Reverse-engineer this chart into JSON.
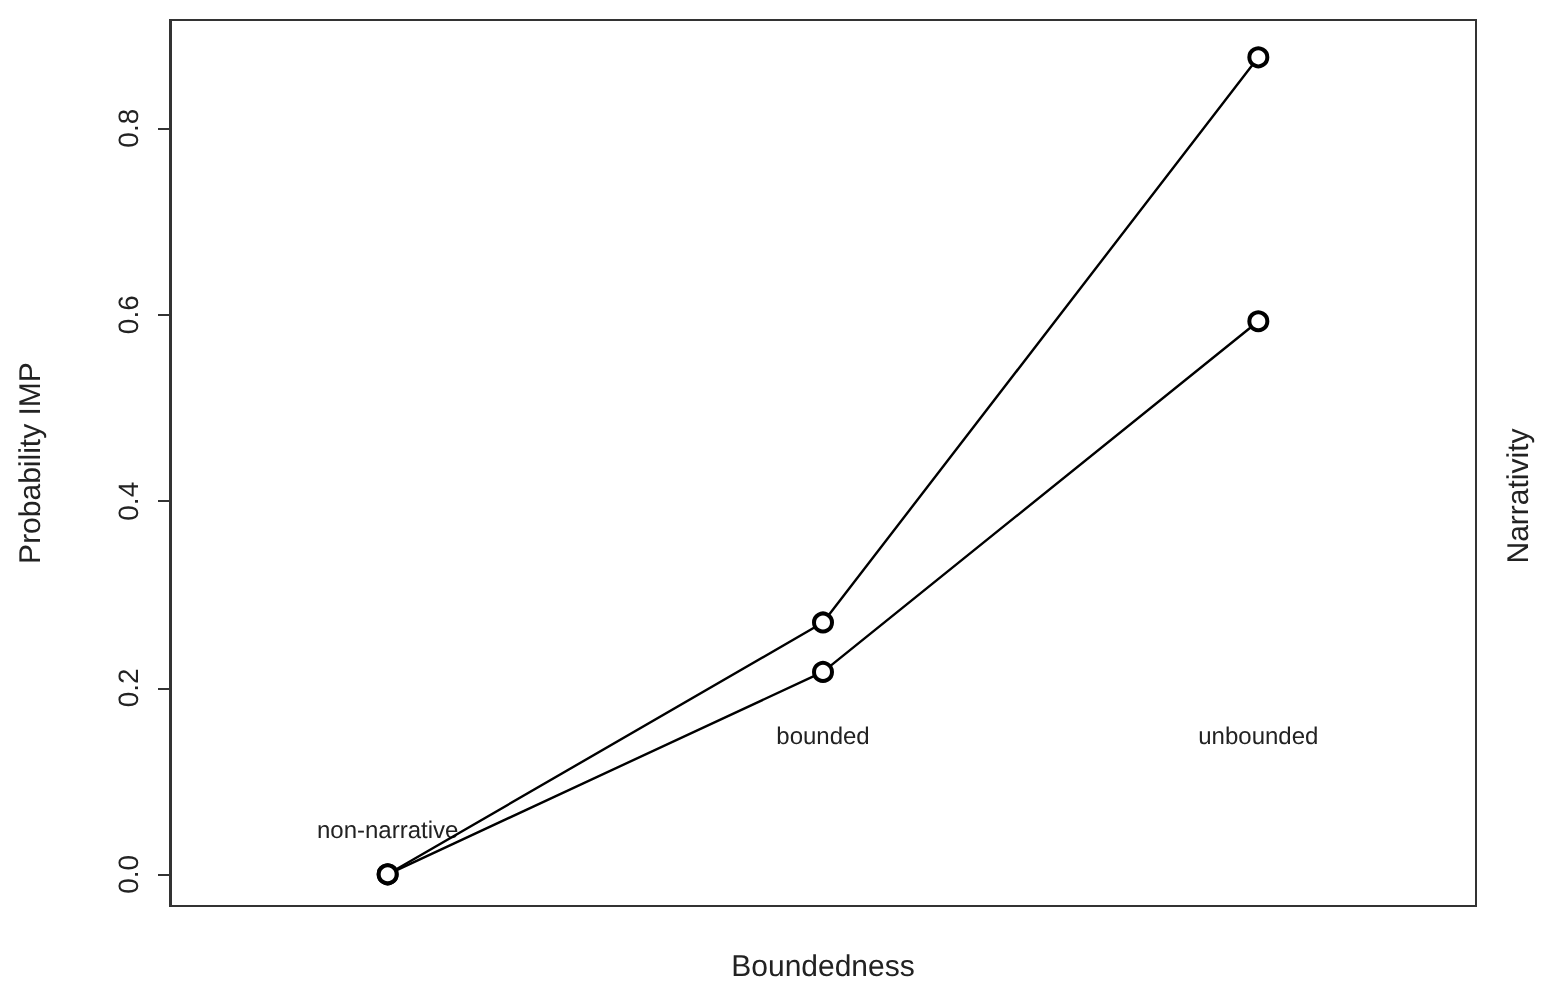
{
  "chart_data": {
    "type": "line",
    "xlabel": "Boundedness",
    "ylabel": "Probability IMP",
    "legend_title": "Narrativity",
    "categories": [
      "non-narrative",
      "bounded",
      "unbounded"
    ],
    "series": [
      {
        "color": "#000000",
        "values": [
          0,
          0.27,
          0.876
        ]
      },
      {
        "color": "#000000",
        "values": [
          0,
          0.217,
          0.593
        ]
      }
    ],
    "ylim": [
      -0.034,
      0.916
    ],
    "yticks": [
      {
        "value": 0,
        "label": "0.0"
      },
      {
        "value": 0.2,
        "label": "0.2"
      },
      {
        "value": 0.4,
        "label": "0.4"
      },
      {
        "value": 0.6,
        "label": "0.6"
      },
      {
        "value": 0.8,
        "label": "0.8"
      }
    ],
    "marker": "circle",
    "line_style": "solid",
    "grid": false
  }
}
